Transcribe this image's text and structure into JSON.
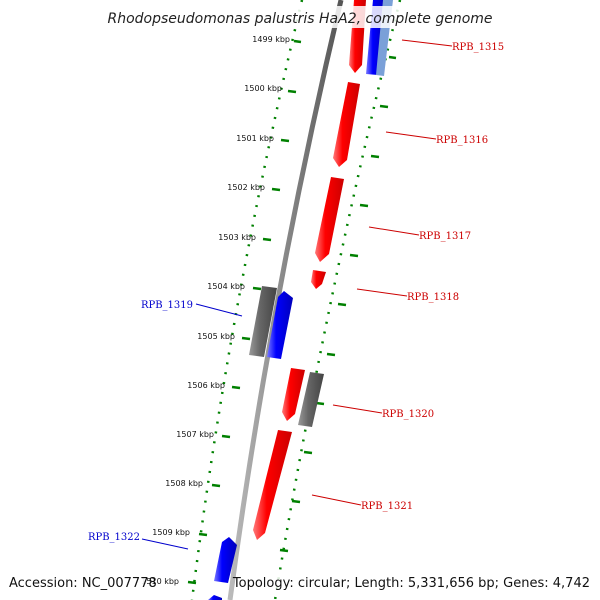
{
  "title": "Rhodopseudomonas palustris HaA2, complete genome",
  "footer": {
    "accession": "Accession: NC_007778",
    "topology": "Topology: circular; Length: 5,331,656 bp; Genes: 4,742"
  },
  "colors": {
    "forward": "#ff0000",
    "reverse": "#0000ff",
    "other": "#666666",
    "backbone": "#888888",
    "ticks": "#008000",
    "label_forward": "#cc0000",
    "label_reverse": "#0000cc",
    "background": "#ffffff"
  },
  "kbp_labels": [
    "1499 kbp",
    "1500 kbp",
    "1501 kbp",
    "1502 kbp",
    "1503 kbp",
    "1504 kbp",
    "1505 kbp",
    "1506 kbp",
    "1507 kbp",
    "1508 kbp",
    "1509 kbp",
    "1510 kbp"
  ],
  "gene_labels": [
    {
      "text": "RPB_1315",
      "strand": "forward"
    },
    {
      "text": "RPB_1316",
      "strand": "forward"
    },
    {
      "text": "RPB_1317",
      "strand": "forward"
    },
    {
      "text": "RPB_1318",
      "strand": "forward"
    },
    {
      "text": "RPB_1319",
      "strand": "reverse"
    },
    {
      "text": "RPB_1320",
      "strand": "forward"
    },
    {
      "text": "RPB_1321",
      "strand": "forward"
    },
    {
      "text": "RPB_1322",
      "strand": "reverse"
    }
  ]
}
